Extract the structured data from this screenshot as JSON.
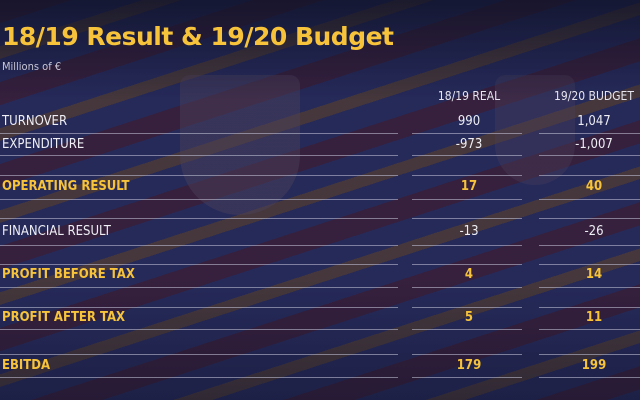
{
  "title": "18/19 Result & 19/20 Budget",
  "subtitle": "Millions of €",
  "columns": [
    "18/19 REAL",
    "19/20 BUDGET"
  ],
  "rows": [
    {
      "label": "TURNOVER",
      "real": "990",
      "budget": "1,047",
      "highlight": false
    },
    {
      "label": "EXPENDITURE",
      "real": "-973",
      "budget": "-1,007",
      "highlight": false
    },
    {
      "label": "OPERATING RESULT",
      "real": "17",
      "budget": "40",
      "highlight": true
    },
    {
      "label": "FINANCIAL RESULT",
      "real": "-13",
      "budget": "-26",
      "highlight": false
    },
    {
      "label": "PROFIT BEFORE TAX",
      "real": "4",
      "budget": "14",
      "highlight": true
    },
    {
      "label": "PROFIT AFTER TAX",
      "real": "5",
      "budget": "11",
      "highlight": true
    },
    {
      "label": "EBITDA",
      "real": "179",
      "budget": "199",
      "highlight": true
    }
  ],
  "colors": {
    "accent": "#f6c33a",
    "text": "#eeeef4",
    "background": "#1a1d3a"
  }
}
